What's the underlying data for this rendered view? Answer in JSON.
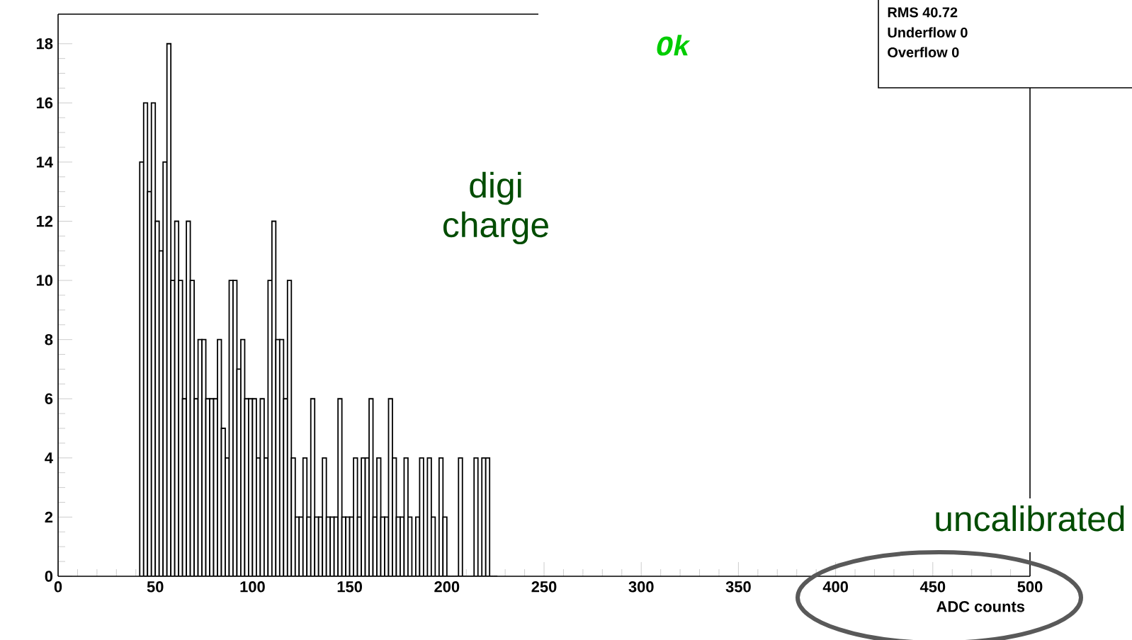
{
  "chart_data": {
    "type": "histogram",
    "xlabel": "ADC counts",
    "bins": [
      42,
      44,
      46,
      48,
      50,
      52,
      54,
      56,
      58,
      60,
      62,
      64,
      66,
      68,
      70,
      72,
      74,
      76,
      78,
      80,
      82,
      84,
      86,
      88,
      90,
      92,
      94,
      96,
      98,
      100,
      102,
      104,
      106,
      108,
      110,
      112,
      114,
      116,
      118,
      120,
      122,
      124,
      126,
      128,
      130,
      132,
      134,
      136,
      138,
      140,
      142,
      144,
      146,
      148,
      150,
      152,
      154,
      156,
      158,
      160,
      162,
      164,
      166,
      168,
      170,
      172,
      174,
      176,
      178,
      180,
      182,
      184,
      186,
      188,
      190,
      192,
      194,
      196,
      198,
      200,
      202,
      204,
      206,
      208,
      210,
      212,
      214,
      216,
      218,
      220,
      222,
      224,
      226
    ],
    "values": [
      14,
      16,
      13,
      16,
      12,
      11,
      14,
      18,
      10,
      12,
      10,
      6,
      12,
      10,
      6,
      8,
      8,
      6,
      6,
      6,
      8,
      5,
      4,
      10,
      10,
      7,
      8,
      6,
      6,
      6,
      4,
      6,
      4,
      10,
      12,
      8,
      8,
      6,
      10,
      4,
      2,
      2,
      4,
      2,
      6,
      2,
      2,
      4,
      2,
      2,
      2,
      6,
      2,
      2,
      2,
      4,
      2,
      4,
      4,
      6,
      2,
      4,
      2,
      2,
      6,
      4,
      2,
      2,
      4,
      2,
      0,
      2,
      4,
      0,
      4,
      2,
      0,
      4,
      2,
      0,
      0,
      0,
      4,
      0,
      0,
      0,
      4,
      0,
      4,
      4,
      0,
      0
    ],
    "color": "#000000",
    "xlim": [
      0,
      500
    ],
    "ylim": [
      0,
      19
    ],
    "xticks": [
      0,
      50,
      100,
      150,
      200,
      250,
      300,
      350,
      400,
      450,
      500
    ],
    "yticks": [
      0,
      2,
      4,
      6,
      8,
      10,
      12,
      14,
      16,
      18
    ],
    "annotations": [
      "Ok",
      "digi charge",
      "uncalibrated",
      "RMS 40.72",
      "Underflow 0",
      "Overflow 0"
    ]
  }
}
